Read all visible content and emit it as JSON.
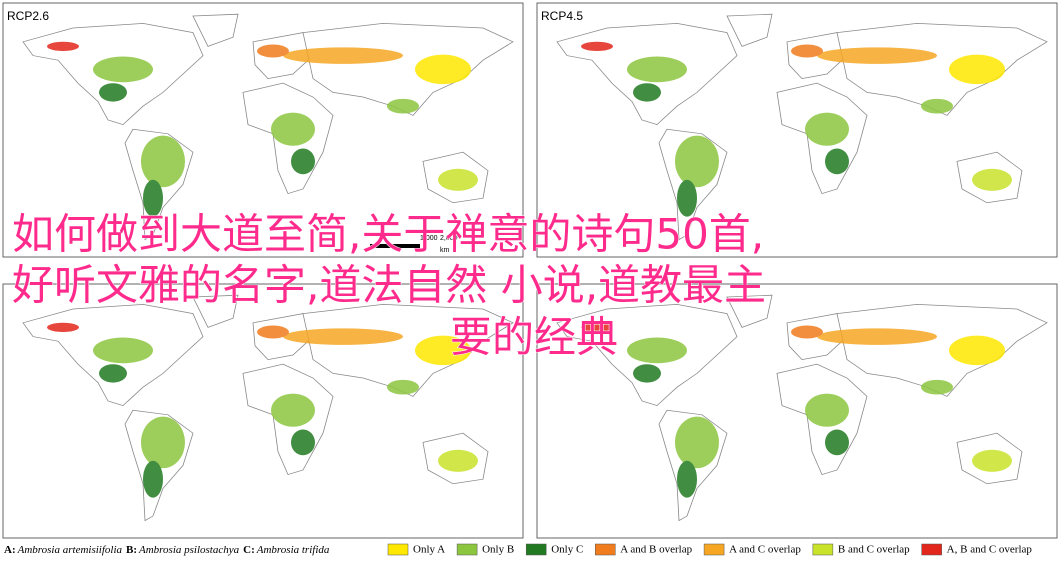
{
  "panels": [
    {
      "label": "RCP2.6"
    },
    {
      "label": "RCP4.5"
    },
    {
      "label": null
    },
    {
      "label": null
    }
  ],
  "scale_bar": {
    "labels": [
      "1,000",
      "2,000",
      "km"
    ]
  },
  "overlay": {
    "lines": [
      "如何做到大道至简,关于禅意的诗句50首,",
      "好听文雅的名字,道法自然 小说,道教最主",
      "要的经典"
    ]
  },
  "legend": {
    "species": [
      {
        "key": "A:",
        "name": "Ambrosia artemisiifolia"
      },
      {
        "key": "B:",
        "name": "Ambrosia psilostachya"
      },
      {
        "key": "C:",
        "name": "Ambrosia trifida"
      }
    ],
    "items": [
      {
        "label": "Only A",
        "color": "#ffe800"
      },
      {
        "label": "Only B",
        "color": "#8cc63f"
      },
      {
        "label": "Only C",
        "color": "#217a21"
      },
      {
        "label": "A and B overlap",
        "color": "#f07c1d"
      },
      {
        "label": "A and C overlap",
        "color": "#f6a623"
      },
      {
        "label": "B and C overlap",
        "color": "#c9e22a"
      },
      {
        "label": "A, B and C overlap",
        "color": "#e3261b"
      }
    ]
  }
}
